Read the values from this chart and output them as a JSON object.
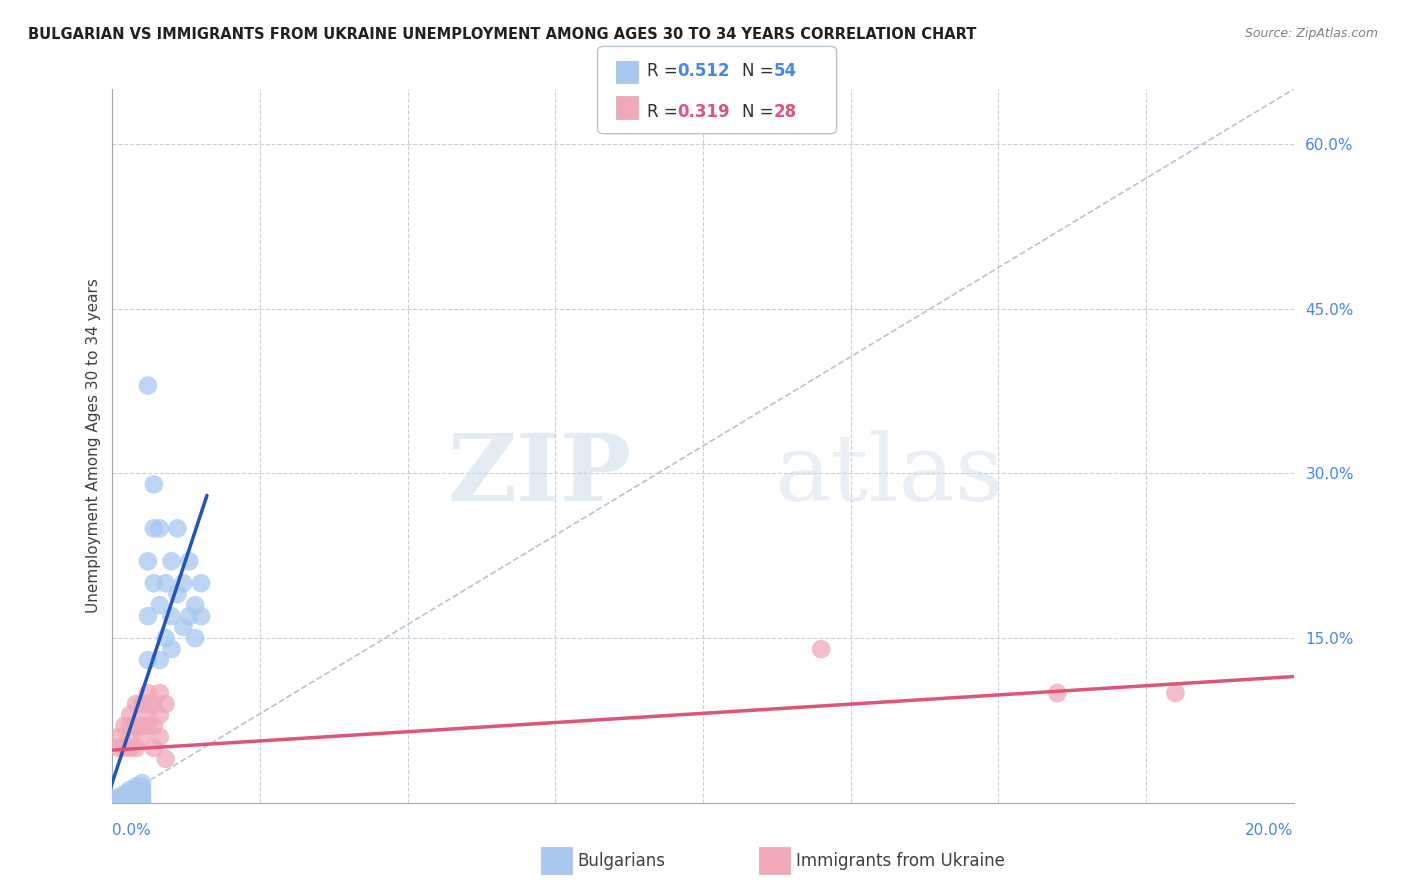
{
  "title": "BULGARIAN VS IMMIGRANTS FROM UKRAINE UNEMPLOYMENT AMONG AGES 30 TO 34 YEARS CORRELATION CHART",
  "source": "Source: ZipAtlas.com",
  "ylabel": "Unemployment Among Ages 30 to 34 years",
  "right_ytick_vals": [
    0.0,
    0.15,
    0.3,
    0.45,
    0.6
  ],
  "right_ytick_labels": [
    "",
    "15.0%",
    "30.0%",
    "45.0%",
    "60.0%"
  ],
  "xmin": 0.0,
  "xmax": 0.2,
  "ymin": 0.0,
  "ymax": 0.65,
  "watermark_zip": "ZIP",
  "watermark_atlas": "atlas",
  "blue_R": "0.512",
  "blue_N": "54",
  "pink_R": "0.319",
  "pink_N": "28",
  "blue_color": "#a8c8f0",
  "pink_color": "#f0a8b8",
  "blue_line_color": "#2255bb",
  "pink_line_color": "#dd5577",
  "ref_line_color": "#b8c4d0",
  "legend_blue_color": "#4488ee",
  "legend_pink_color": "#dd5577",
  "blue_scatter": [
    [
      0.001,
      0.005
    ],
    [
      0.001,
      0.003
    ],
    [
      0.001,
      0.002
    ],
    [
      0.001,
      0.001
    ],
    [
      0.002,
      0.008
    ],
    [
      0.002,
      0.006
    ],
    [
      0.002,
      0.004
    ],
    [
      0.002,
      0.003
    ],
    [
      0.002,
      0.001
    ],
    [
      0.002,
      0.0
    ],
    [
      0.003,
      0.012
    ],
    [
      0.003,
      0.009
    ],
    [
      0.003,
      0.007
    ],
    [
      0.003,
      0.005
    ],
    [
      0.003,
      0.003
    ],
    [
      0.003,
      0.001
    ],
    [
      0.004,
      0.015
    ],
    [
      0.004,
      0.012
    ],
    [
      0.004,
      0.01
    ],
    [
      0.004,
      0.008
    ],
    [
      0.004,
      0.005
    ],
    [
      0.004,
      0.003
    ],
    [
      0.005,
      0.018
    ],
    [
      0.005,
      0.014
    ],
    [
      0.005,
      0.01
    ],
    [
      0.005,
      0.007
    ],
    [
      0.005,
      0.003
    ],
    [
      0.005,
      0.001
    ],
    [
      0.006,
      0.22
    ],
    [
      0.006,
      0.17
    ],
    [
      0.006,
      0.13
    ],
    [
      0.006,
      0.09
    ],
    [
      0.007,
      0.29
    ],
    [
      0.007,
      0.25
    ],
    [
      0.007,
      0.2
    ],
    [
      0.008,
      0.25
    ],
    [
      0.008,
      0.18
    ],
    [
      0.008,
      0.13
    ],
    [
      0.009,
      0.2
    ],
    [
      0.009,
      0.15
    ],
    [
      0.01,
      0.22
    ],
    [
      0.01,
      0.17
    ],
    [
      0.01,
      0.14
    ],
    [
      0.011,
      0.25
    ],
    [
      0.011,
      0.19
    ],
    [
      0.012,
      0.2
    ],
    [
      0.012,
      0.16
    ],
    [
      0.013,
      0.22
    ],
    [
      0.013,
      0.17
    ],
    [
      0.014,
      0.18
    ],
    [
      0.014,
      0.15
    ],
    [
      0.015,
      0.2
    ],
    [
      0.015,
      0.17
    ],
    [
      0.006,
      0.38
    ]
  ],
  "pink_scatter": [
    [
      0.001,
      0.06
    ],
    [
      0.001,
      0.05
    ],
    [
      0.002,
      0.07
    ],
    [
      0.002,
      0.05
    ],
    [
      0.003,
      0.08
    ],
    [
      0.003,
      0.07
    ],
    [
      0.003,
      0.06
    ],
    [
      0.003,
      0.05
    ],
    [
      0.004,
      0.09
    ],
    [
      0.004,
      0.07
    ],
    [
      0.004,
      0.05
    ],
    [
      0.005,
      0.09
    ],
    [
      0.005,
      0.07
    ],
    [
      0.005,
      0.06
    ],
    [
      0.006,
      0.1
    ],
    [
      0.006,
      0.08
    ],
    [
      0.006,
      0.07
    ],
    [
      0.007,
      0.09
    ],
    [
      0.007,
      0.07
    ],
    [
      0.007,
      0.05
    ],
    [
      0.008,
      0.1
    ],
    [
      0.008,
      0.08
    ],
    [
      0.008,
      0.06
    ],
    [
      0.009,
      0.09
    ],
    [
      0.009,
      0.04
    ],
    [
      0.12,
      0.14
    ],
    [
      0.16,
      0.1
    ],
    [
      0.18,
      0.1
    ]
  ],
  "blue_line_x": [
    -0.003,
    0.016
  ],
  "blue_line_y": [
    -0.03,
    0.28
  ],
  "pink_line_x": [
    0.0,
    0.2
  ],
  "pink_line_y": [
    0.048,
    0.115
  ],
  "ref_line_x": [
    0.0,
    0.2
  ],
  "ref_line_y": [
    0.0,
    0.65
  ]
}
